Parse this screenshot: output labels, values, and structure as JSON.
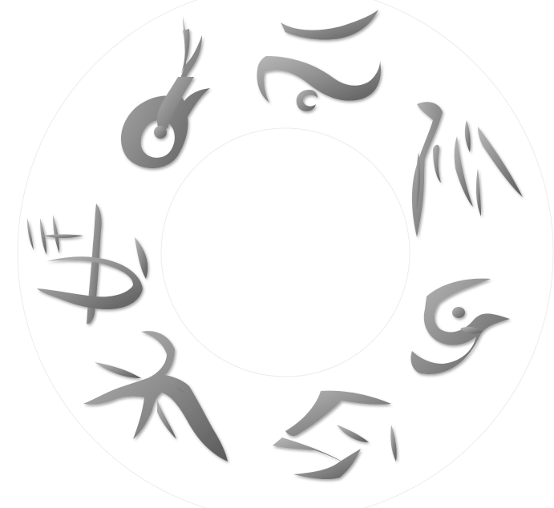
{
  "colors": {
    "background": "#ffffff",
    "ring_outline": "#ececec",
    "glyph_fill": "#8c8c8c",
    "glyph_edge": "#5a5a5a",
    "glyph_highlight": "#b8b8b8"
  },
  "glyphs": [
    {
      "name": "glyph-top-left-curl"
    },
    {
      "name": "glyph-top-swoosh"
    },
    {
      "name": "glyph-upper-right-strokes"
    },
    {
      "name": "glyph-right-spiral"
    },
    {
      "name": "glyph-bottom-right-zigzag"
    },
    {
      "name": "glyph-bottom-left-bird"
    },
    {
      "name": "glyph-left-crossed-arc"
    }
  ]
}
